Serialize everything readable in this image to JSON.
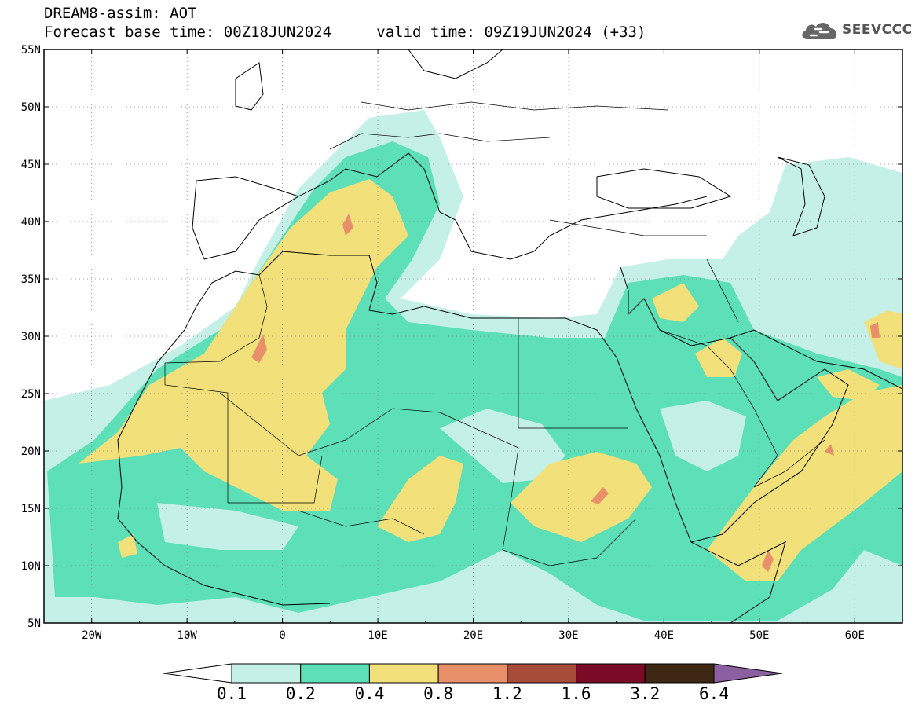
{
  "header": {
    "title": "DREAM8-assim: AOT",
    "base_time_label": "Forecast base time: 00Z18JUN2024",
    "valid_time_label": "valid time: 09Z19JUN2024 (+33)"
  },
  "logo": {
    "text": "SEEVCCC",
    "icon": "cloud-icon"
  },
  "map": {
    "region": {
      "lon_min": -25,
      "lon_max": 65,
      "lat_min": 5,
      "lat_max": 55
    },
    "lat_ticks": [
      "5N",
      "10N",
      "15N",
      "20N",
      "25N",
      "30N",
      "35N",
      "40N",
      "45N",
      "50N",
      "55N"
    ],
    "lon_ticks": [
      "20W",
      "10W",
      "0",
      "10E",
      "20E",
      "30E",
      "40E",
      "50E",
      "60E"
    ],
    "grid": true,
    "grid_style": "dotted"
  },
  "colorbar": {
    "values": [
      "0.1",
      "0.2",
      "0.4",
      "0.8",
      "1.2",
      "1.6",
      "3.2",
      "6.4"
    ],
    "colors": [
      "#ffffff",
      "#c5f0e8",
      "#5ddfb8",
      "#f2e07a",
      "#e8906a",
      "#a84c3a",
      "#7a0a26",
      "#3e2814",
      "#8a60a0"
    ]
  }
}
